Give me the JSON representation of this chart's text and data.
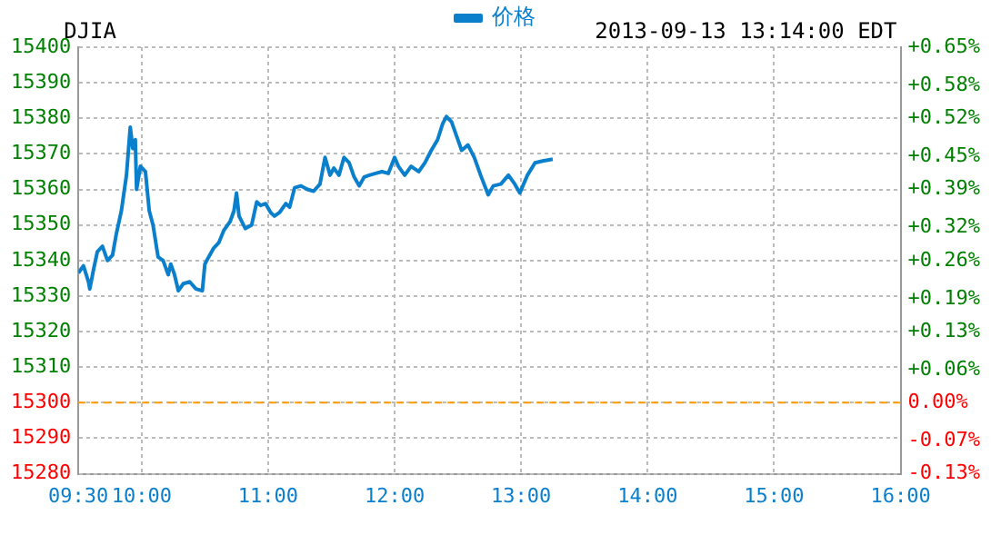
{
  "chart_data": {
    "type": "line",
    "title": "DJIA",
    "annotations": [
      "2013-09-13 13:14:00 EDT"
    ],
    "legend": "top",
    "grid": true,
    "marker": "none",
    "line_style": "solid",
    "xlim": [
      9.5,
      16
    ],
    "xticks": [
      {
        "value": 9.5,
        "label": "09:30"
      },
      {
        "value": 10,
        "label": "10:00"
      },
      {
        "value": 11,
        "label": "11:00"
      },
      {
        "value": 12,
        "label": "12:00"
      },
      {
        "value": 13,
        "label": "13:00"
      },
      {
        "value": 14,
        "label": "14:00"
      },
      {
        "value": 15,
        "label": "15:00"
      },
      {
        "value": 16,
        "label": "16:00"
      }
    ],
    "ylim": [
      15280,
      15400
    ],
    "yticks": [
      15280,
      15290,
      15300,
      15310,
      15320,
      15330,
      15340,
      15350,
      15360,
      15370,
      15380,
      15390,
      15400
    ],
    "y2lim": [
      -0.13,
      0.65
    ],
    "y2ticks": [
      {
        "value": -0.13,
        "label": "-0.13%"
      },
      {
        "value": -0.07,
        "label": "-0.07%"
      },
      {
        "value": 0,
        "label": "0.00%"
      },
      {
        "value": 0.06,
        "label": "+0.06%"
      },
      {
        "value": 0.13,
        "label": "+0.13%"
      },
      {
        "value": 0.19,
        "label": "+0.19%"
      },
      {
        "value": 0.26,
        "label": "+0.26%"
      },
      {
        "value": 0.32,
        "label": "+0.32%"
      },
      {
        "value": 0.39,
        "label": "+0.39%"
      },
      {
        "value": 0.45,
        "label": "+0.45%"
      },
      {
        "value": 0.52,
        "label": "+0.52%"
      },
      {
        "value": 0.58,
        "label": "+0.58%"
      },
      {
        "value": 0.65,
        "label": "+0.65%"
      }
    ],
    "ref_lines": [
      {
        "axis": "y",
        "value": 15300,
        "color": "#ff9900",
        "line_style": "dashed"
      }
    ],
    "series": [
      {
        "name": "价格",
        "color": "#0a7fcc",
        "x": [
          9.5,
          9.54,
          9.58,
          9.59,
          9.62,
          9.65,
          9.69,
          9.73,
          9.77,
          9.8,
          9.84,
          9.88,
          9.91,
          9.93,
          9.95,
          9.96,
          9.99,
          10.03,
          10.06,
          10.09,
          10.13,
          10.17,
          10.21,
          10.23,
          10.26,
          10.29,
          10.33,
          10.38,
          10.43,
          10.48,
          10.5,
          10.53,
          10.57,
          10.61,
          10.65,
          10.7,
          10.73,
          10.75,
          10.77,
          10.82,
          10.87,
          10.91,
          10.94,
          10.98,
          11.02,
          11.05,
          11.09,
          11.14,
          11.17,
          11.21,
          11.26,
          11.31,
          11.36,
          11.41,
          11.45,
          11.47,
          11.49,
          11.52,
          11.56,
          11.6,
          11.64,
          11.68,
          11.72,
          11.76,
          11.8,
          11.85,
          11.9,
          11.95,
          12,
          12.03,
          12.08,
          12.13,
          12.19,
          12.24,
          12.29,
          12.34,
          12.38,
          12.41,
          12.45,
          12.49,
          12.53,
          12.58,
          12.63,
          12.68,
          12.74,
          12.78,
          12.84,
          12.9,
          12.95,
          12.99,
          13.05,
          13.11,
          13.17,
          13.25
        ],
        "values": [
          15336.5,
          15338.5,
          15334,
          15332,
          15337.5,
          15342.5,
          15344,
          15340,
          15341.5,
          15347.5,
          15354,
          15364,
          15377.5,
          15371.5,
          15374,
          15360,
          15366.5,
          15365,
          15354,
          15350,
          15341,
          15340,
          15336,
          15339,
          15336,
          15331.5,
          15333.5,
          15334,
          15332,
          15331.5,
          15339,
          15341,
          15343.5,
          15345,
          15348.5,
          15351,
          15354,
          15359,
          15352.5,
          15349,
          15350,
          15356.5,
          15355.5,
          15356,
          15353.5,
          15352.5,
          15353.5,
          15356,
          15355,
          15360.5,
          15361,
          15360,
          15359.5,
          15361.5,
          15369,
          15366.5,
          15364,
          15366,
          15364,
          15369,
          15367.5,
          15363.5,
          15361,
          15363.5,
          15364,
          15364.5,
          15365,
          15364.5,
          15369,
          15366.5,
          15364,
          15366.5,
          15365,
          15367.5,
          15371,
          15374,
          15378.5,
          15380.5,
          15379,
          15375,
          15371,
          15372.5,
          15369,
          15364,
          15358.5,
          15361,
          15361.5,
          15364,
          15361.5,
          15359,
          15364,
          15367.5,
          15368,
          15368.5
        ]
      }
    ]
  }
}
